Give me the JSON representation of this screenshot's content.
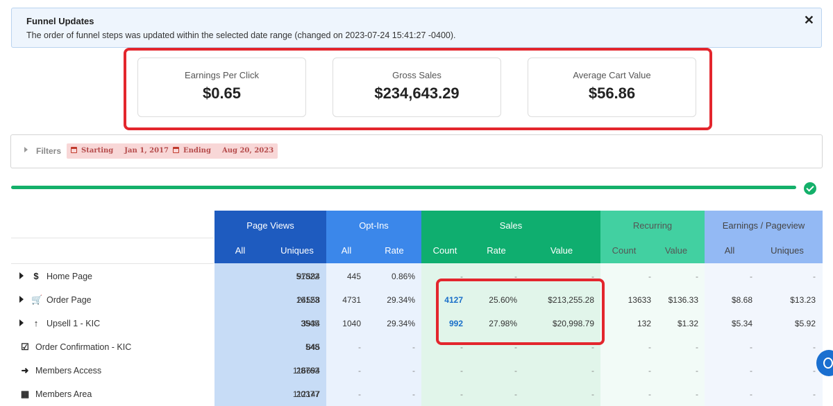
{
  "alert": {
    "title": "Funnel Updates",
    "message": "The order of funnel steps was updated within the selected date range (changed on 2023-07-24 15:41:27 -0400).",
    "close_glyph": "✕"
  },
  "stats": [
    {
      "label": "Earnings Per Click",
      "value": "$0.65"
    },
    {
      "label": "Gross Sales",
      "value": "$234,643.29"
    },
    {
      "label": "Average Cart Value",
      "value": "$56.86"
    }
  ],
  "filters": {
    "label": "Filters",
    "starting_label": "Starting",
    "starting_value": "Jan 1, 2017",
    "ending_label": "Ending",
    "ending_value": "Aug 20, 2023"
  },
  "progress": {
    "value": 1.0,
    "color": "#14b06a"
  },
  "table": {
    "groups": [
      {
        "name": "Page Views",
        "subs": [
          "All",
          "Uniques"
        ],
        "color": "#1e5bbf"
      },
      {
        "name": "Opt-Ins",
        "subs": [
          "All",
          "Rate"
        ],
        "color": "#3b87ea"
      },
      {
        "name": "Sales",
        "subs": [
          "Count",
          "Rate",
          "Value"
        ],
        "color": "#0fae6f"
      },
      {
        "name": "Recurring",
        "subs": [
          "Count",
          "Value"
        ],
        "color": "#42d0a1"
      },
      {
        "name": "Earnings / Pageview",
        "subs": [
          "All",
          "Uniques"
        ],
        "color": "#93b9f4"
      }
    ],
    "rows": [
      {
        "label": "Home Page",
        "icon": "dollar-icon",
        "glyph": "$",
        "expandable": true,
        "cells": [
          "97584",
          "51822",
          "445",
          "0.86%",
          "-",
          "-",
          "-",
          "-",
          "-",
          "-",
          "-"
        ]
      },
      {
        "label": "Order Page",
        "icon": "cart-icon",
        "glyph": "🛒",
        "expandable": true,
        "cells": [
          "24558",
          "16123",
          "4731",
          "29.34%",
          "4127",
          "25.60%",
          "$213,255.28",
          "13633",
          "$136.33",
          "$8.68",
          "$13.23"
        ]
      },
      {
        "label": "Upsell 1 - KIC",
        "icon": "arrow-up-icon",
        "glyph": "↑",
        "expandable": true,
        "cells": [
          "3934",
          "3545",
          "1040",
          "29.34%",
          "992",
          "27.98%",
          "$20,998.79",
          "132",
          "$1.32",
          "$5.34",
          "$5.92"
        ]
      },
      {
        "label": "Order Confirmation - KIC",
        "icon": "checkbox-icon",
        "glyph": "☑",
        "expandable": false,
        "cells": [
          "845",
          "548",
          "-",
          "-",
          "-",
          "-",
          "-",
          "-",
          "-",
          "-",
          "-"
        ]
      },
      {
        "label": "Members Access",
        "icon": "sign-in-icon",
        "glyph": "➜",
        "expandable": false,
        "cells": [
          "116694",
          "28763",
          "-",
          "-",
          "-",
          "-",
          "-",
          "-",
          "-",
          "-",
          "-"
        ]
      },
      {
        "label": "Members Area",
        "icon": "grid-icon",
        "glyph": "▦",
        "expandable": false,
        "cells": [
          "112147",
          "20377",
          "-",
          "-",
          "-",
          "-",
          "-",
          "-",
          "-",
          "-",
          "-"
        ]
      }
    ]
  }
}
